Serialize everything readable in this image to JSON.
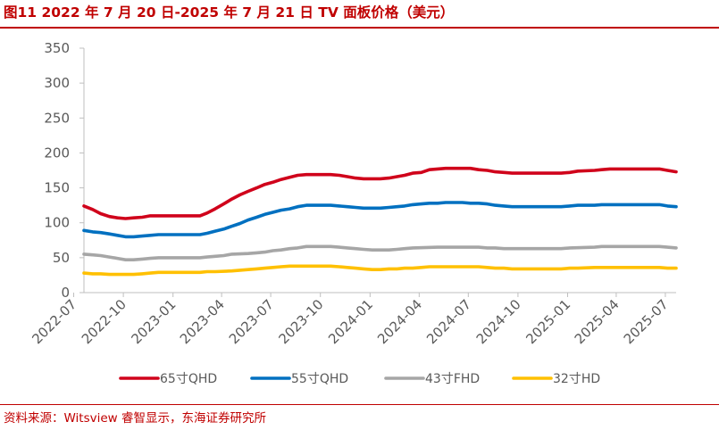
{
  "header": {
    "title": "图11  2022 年 7 月 20 日-2025 年 7 月 21 日 TV 面板价格（美元）"
  },
  "footer": {
    "source": "资料来源：Witsview 睿智显示，东海证券研究所"
  },
  "colors": {
    "accent": "#c00000",
    "axis_text": "#595959",
    "axis_line": "#bfbfbf"
  },
  "chart_data": {
    "type": "line",
    "title": "图11  2022 年 7 月 20 日-2025 年 7 月 21 日 TV 面板价格（美元）",
    "xlabel": "",
    "ylabel": "",
    "ylim": [
      0,
      350
    ],
    "yticks": [
      0,
      50,
      100,
      150,
      200,
      250,
      300,
      350
    ],
    "xlim": [
      "2022-07-20",
      "2025-07-21"
    ],
    "xticks": [
      "2022-07",
      "2022-10",
      "2023-01",
      "2023-04",
      "2023-07",
      "2023-10",
      "2024-01",
      "2024-04",
      "2024-07",
      "2024-10",
      "2025-01",
      "2025-04",
      "2025-07"
    ],
    "grid": false,
    "legend": "bottom",
    "series": [
      {
        "name": "65寸QHD",
        "color": "#d0021b",
        "points": [
          [
            "2022-07-20",
            124
          ],
          [
            "2022-08-05",
            119
          ],
          [
            "2022-08-20",
            113
          ],
          [
            "2022-09-05",
            109
          ],
          [
            "2022-09-20",
            107
          ],
          [
            "2022-10-05",
            106
          ],
          [
            "2022-10-20",
            107
          ],
          [
            "2022-11-05",
            108
          ],
          [
            "2022-11-20",
            110
          ],
          [
            "2022-12-20",
            110
          ],
          [
            "2023-02-20",
            110
          ],
          [
            "2023-03-05",
            114
          ],
          [
            "2023-03-20",
            120
          ],
          [
            "2023-04-05",
            127
          ],
          [
            "2023-04-20",
            134
          ],
          [
            "2023-05-05",
            140
          ],
          [
            "2023-05-20",
            145
          ],
          [
            "2023-06-05",
            150
          ],
          [
            "2023-06-20",
            155
          ],
          [
            "2023-07-05",
            158
          ],
          [
            "2023-07-20",
            162
          ],
          [
            "2023-08-05",
            165
          ],
          [
            "2023-08-20",
            168
          ],
          [
            "2023-09-05",
            169
          ],
          [
            "2023-10-20",
            169
          ],
          [
            "2023-11-05",
            168
          ],
          [
            "2023-11-20",
            166
          ],
          [
            "2023-12-05",
            164
          ],
          [
            "2023-12-20",
            163
          ],
          [
            "2024-01-20",
            163
          ],
          [
            "2024-02-05",
            164
          ],
          [
            "2024-02-20",
            166
          ],
          [
            "2024-03-05",
            168
          ],
          [
            "2024-03-20",
            171
          ],
          [
            "2024-04-05",
            172
          ],
          [
            "2024-04-20",
            176
          ],
          [
            "2024-05-05",
            177
          ],
          [
            "2024-05-20",
            178
          ],
          [
            "2024-07-05",
            178
          ],
          [
            "2024-07-20",
            176
          ],
          [
            "2024-08-05",
            175
          ],
          [
            "2024-08-20",
            173
          ],
          [
            "2024-09-05",
            172
          ],
          [
            "2024-09-20",
            171
          ],
          [
            "2024-12-20",
            171
          ],
          [
            "2025-01-05",
            172
          ],
          [
            "2025-01-20",
            174
          ],
          [
            "2025-02-20",
            175
          ],
          [
            "2025-03-05",
            176
          ],
          [
            "2025-03-20",
            177
          ],
          [
            "2025-06-20",
            177
          ],
          [
            "2025-07-05",
            175
          ],
          [
            "2025-07-21",
            173
          ]
        ]
      },
      {
        "name": "55寸QHD",
        "color": "#0070c0",
        "points": [
          [
            "2022-07-20",
            89
          ],
          [
            "2022-08-05",
            87
          ],
          [
            "2022-08-20",
            86
          ],
          [
            "2022-09-05",
            84
          ],
          [
            "2022-09-20",
            82
          ],
          [
            "2022-10-05",
            80
          ],
          [
            "2022-10-20",
            80
          ],
          [
            "2022-11-05",
            81
          ],
          [
            "2022-11-20",
            82
          ],
          [
            "2022-12-05",
            83
          ],
          [
            "2023-02-20",
            83
          ],
          [
            "2023-03-05",
            85
          ],
          [
            "2023-03-20",
            88
          ],
          [
            "2023-04-05",
            91
          ],
          [
            "2023-04-20",
            95
          ],
          [
            "2023-05-05",
            99
          ],
          [
            "2023-05-20",
            104
          ],
          [
            "2023-06-05",
            108
          ],
          [
            "2023-06-20",
            112
          ],
          [
            "2023-07-05",
            115
          ],
          [
            "2023-07-20",
            118
          ],
          [
            "2023-08-05",
            120
          ],
          [
            "2023-08-20",
            123
          ],
          [
            "2023-09-05",
            125
          ],
          [
            "2023-10-20",
            125
          ],
          [
            "2023-11-05",
            124
          ],
          [
            "2023-11-20",
            123
          ],
          [
            "2023-12-05",
            122
          ],
          [
            "2023-12-20",
            121
          ],
          [
            "2024-01-20",
            121
          ],
          [
            "2024-02-05",
            122
          ],
          [
            "2024-02-20",
            123
          ],
          [
            "2024-03-05",
            124
          ],
          [
            "2024-03-20",
            126
          ],
          [
            "2024-04-05",
            127
          ],
          [
            "2024-04-20",
            128
          ],
          [
            "2024-05-05",
            128
          ],
          [
            "2024-05-20",
            129
          ],
          [
            "2024-06-20",
            129
          ],
          [
            "2024-07-05",
            128
          ],
          [
            "2024-07-20",
            128
          ],
          [
            "2024-08-05",
            127
          ],
          [
            "2024-08-20",
            125
          ],
          [
            "2024-09-05",
            124
          ],
          [
            "2024-09-20",
            123
          ],
          [
            "2024-12-20",
            123
          ],
          [
            "2025-01-05",
            124
          ],
          [
            "2025-01-20",
            125
          ],
          [
            "2025-02-20",
            125
          ],
          [
            "2025-03-05",
            126
          ],
          [
            "2025-06-20",
            126
          ],
          [
            "2025-07-05",
            124
          ],
          [
            "2025-07-21",
            123
          ]
        ]
      },
      {
        "name": "43寸FHD",
        "color": "#a6a6a6",
        "points": [
          [
            "2022-07-20",
            55
          ],
          [
            "2022-08-05",
            54
          ],
          [
            "2022-08-20",
            53
          ],
          [
            "2022-09-05",
            51
          ],
          [
            "2022-09-20",
            49
          ],
          [
            "2022-10-05",
            47
          ],
          [
            "2022-10-20",
            47
          ],
          [
            "2022-11-05",
            48
          ],
          [
            "2022-11-20",
            49
          ],
          [
            "2022-12-05",
            50
          ],
          [
            "2023-02-20",
            50
          ],
          [
            "2023-03-05",
            51
          ],
          [
            "2023-03-20",
            52
          ],
          [
            "2023-04-05",
            53
          ],
          [
            "2023-04-20",
            55
          ],
          [
            "2023-05-20",
            56
          ],
          [
            "2023-06-05",
            57
          ],
          [
            "2023-06-20",
            58
          ],
          [
            "2023-07-05",
            60
          ],
          [
            "2023-07-20",
            61
          ],
          [
            "2023-08-05",
            63
          ],
          [
            "2023-08-20",
            64
          ],
          [
            "2023-09-05",
            66
          ],
          [
            "2023-10-20",
            66
          ],
          [
            "2023-11-05",
            65
          ],
          [
            "2023-11-20",
            64
          ],
          [
            "2023-12-05",
            63
          ],
          [
            "2023-12-20",
            62
          ],
          [
            "2024-01-05",
            61
          ],
          [
            "2024-02-05",
            61
          ],
          [
            "2024-02-20",
            62
          ],
          [
            "2024-03-05",
            63
          ],
          [
            "2024-03-20",
            64
          ],
          [
            "2024-05-05",
            65
          ],
          [
            "2024-07-20",
            65
          ],
          [
            "2024-08-05",
            64
          ],
          [
            "2024-08-20",
            64
          ],
          [
            "2024-09-05",
            63
          ],
          [
            "2024-12-20",
            63
          ],
          [
            "2025-01-05",
            64
          ],
          [
            "2025-02-20",
            65
          ],
          [
            "2025-03-05",
            66
          ],
          [
            "2025-06-20",
            66
          ],
          [
            "2025-07-05",
            65
          ],
          [
            "2025-07-21",
            64
          ]
        ]
      },
      {
        "name": "32寸HD",
        "color": "#ffc000",
        "points": [
          [
            "2022-07-20",
            28
          ],
          [
            "2022-08-05",
            27
          ],
          [
            "2022-08-20",
            27
          ],
          [
            "2022-09-05",
            26
          ],
          [
            "2022-10-20",
            26
          ],
          [
            "2022-11-05",
            27
          ],
          [
            "2022-11-20",
            28
          ],
          [
            "2022-12-05",
            29
          ],
          [
            "2023-02-20",
            29
          ],
          [
            "2023-03-05",
            30
          ],
          [
            "2023-03-20",
            30
          ],
          [
            "2023-04-20",
            31
          ],
          [
            "2023-05-05",
            32
          ],
          [
            "2023-05-20",
            33
          ],
          [
            "2023-06-05",
            34
          ],
          [
            "2023-06-20",
            35
          ],
          [
            "2023-07-05",
            36
          ],
          [
            "2023-07-20",
            37
          ],
          [
            "2023-08-05",
            38
          ],
          [
            "2023-10-20",
            38
          ],
          [
            "2023-11-05",
            37
          ],
          [
            "2023-11-20",
            36
          ],
          [
            "2023-12-05",
            35
          ],
          [
            "2023-12-20",
            34
          ],
          [
            "2024-01-05",
            33
          ],
          [
            "2024-01-20",
            33
          ],
          [
            "2024-02-05",
            34
          ],
          [
            "2024-02-20",
            34
          ],
          [
            "2024-03-05",
            35
          ],
          [
            "2024-03-20",
            35
          ],
          [
            "2024-04-05",
            36
          ],
          [
            "2024-04-20",
            37
          ],
          [
            "2024-07-20",
            37
          ],
          [
            "2024-08-05",
            36
          ],
          [
            "2024-08-20",
            35
          ],
          [
            "2024-09-05",
            35
          ],
          [
            "2024-09-20",
            34
          ],
          [
            "2024-12-20",
            34
          ],
          [
            "2025-01-05",
            35
          ],
          [
            "2025-01-20",
            35
          ],
          [
            "2025-02-20",
            36
          ],
          [
            "2025-06-20",
            36
          ],
          [
            "2025-07-05",
            35
          ],
          [
            "2025-07-21",
            35
          ]
        ]
      }
    ]
  }
}
